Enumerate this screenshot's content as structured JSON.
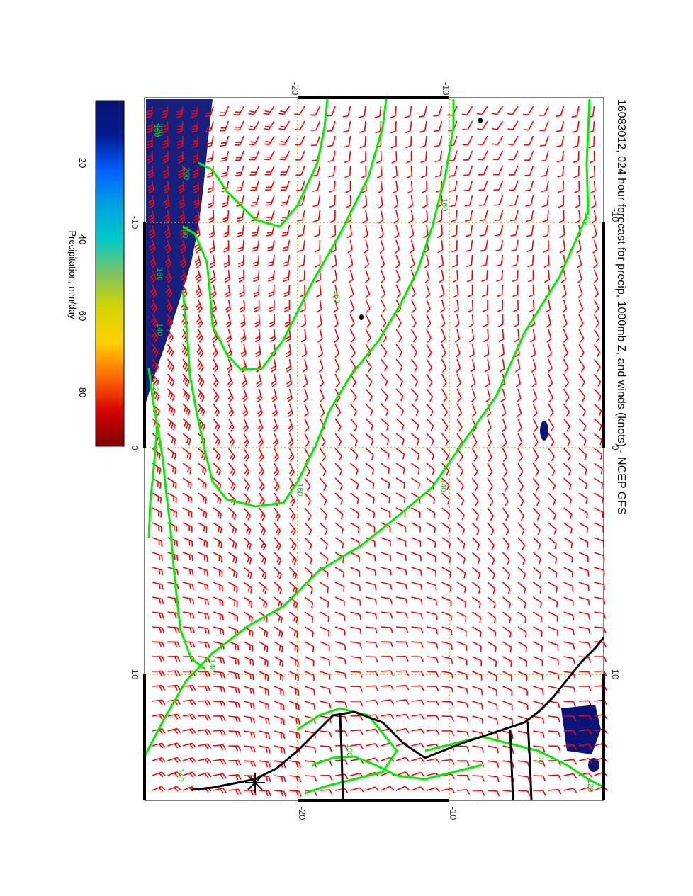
{
  "title": "16083012, 024 hour forecast for precip, 1000mb Z, and winds (knots) - NCEP GFS",
  "colorbar": {
    "label": "Precipitation, mm/day",
    "ticks": [
      "20",
      "40",
      "60",
      "80"
    ],
    "stops": [
      "#7a0000",
      "#d40000",
      "#ff6a00",
      "#ffd000",
      "#d4d400",
      "#7cc460",
      "#00c8c8",
      "#00a0e0",
      "#0060ff",
      "#001a90",
      "#0a1470"
    ]
  },
  "axes": {
    "lon_labels_top": [
      "-20",
      "-10"
    ],
    "lon_labels_bottom": [
      "-20",
      "-10"
    ],
    "lat_labels_left": [
      "-10",
      "0",
      "10"
    ],
    "lat_labels_right": [
      "-10",
      "0",
      "10"
    ]
  },
  "contour_labels": [
    "220",
    "200",
    "180",
    "160",
    "140",
    "120",
    "100",
    "140",
    "160",
    "140",
    "140",
    "160",
    "160",
    "140",
    "100",
    "100",
    "120"
  ],
  "colors": {
    "wind_barb": "#ff0000",
    "contour": "#00ee00",
    "contour_label": "#22bb22",
    "grid": "#d4a017",
    "coast": "#000000",
    "precip": "#0a1478",
    "frame": "#000000"
  }
}
